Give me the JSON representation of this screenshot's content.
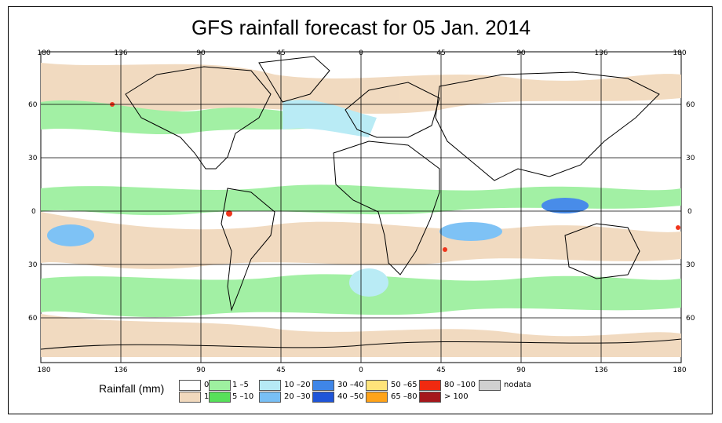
{
  "title": "GFS rainfall forecast for 05 Jan. 2014",
  "lon_ticks": [
    "180",
    "136",
    "90",
    "45",
    "0",
    "45",
    "90",
    "136",
    "180"
  ],
  "lat_ticks": [
    "60",
    "30",
    "0",
    "30",
    "60"
  ],
  "legend": {
    "title": "Rainfall (mm)",
    "items": [
      {
        "label": "0",
        "color": "#ffffff"
      },
      {
        "label": "1",
        "color": "#f1d9bd"
      },
      {
        "label": "1 –5",
        "color": "#9ef0a0"
      },
      {
        "label": "5 –10",
        "color": "#57e05a"
      },
      {
        "label": "10 –20",
        "color": "#b6eaf5"
      },
      {
        "label": "20 –30",
        "color": "#78bff5"
      },
      {
        "label": "30 –40",
        "color": "#3f86e8"
      },
      {
        "label": "40 –50",
        "color": "#1f55d8"
      },
      {
        "label": "50 –65",
        "color": "#ffe47a"
      },
      {
        "label": "65 –80",
        "color": "#ffa319"
      },
      {
        "label": "80 –100",
        "color": "#f02a10"
      },
      {
        "label": "> 100",
        "color": "#a5171c"
      },
      {
        "label": "nodata",
        "color": "#d0d0d0"
      }
    ]
  }
}
